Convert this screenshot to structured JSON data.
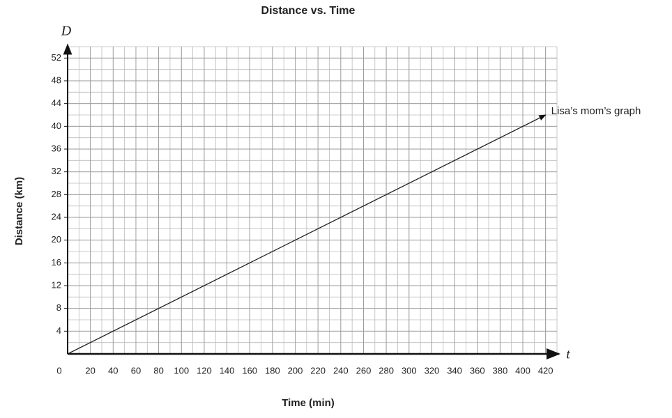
{
  "chart_data": {
    "type": "line",
    "title": "Distance vs. Time",
    "x_label": "Time (min)",
    "y_label": "Distance (km)",
    "x_axis_symbol": "t",
    "y_axis_symbol": "D",
    "annotation": "Lisa’s mom’s graph",
    "x": [
      0,
      420
    ],
    "series": [
      {
        "name": "Lisa’s mom’s graph",
        "color": "#222222",
        "values": [
          0,
          42
        ]
      }
    ],
    "xlim": [
      0,
      430
    ],
    "ylim": [
      0,
      54
    ],
    "xticks": [
      0,
      20,
      40,
      60,
      80,
      100,
      120,
      140,
      160,
      180,
      200,
      220,
      240,
      260,
      280,
      300,
      320,
      340,
      360,
      380,
      400,
      420
    ],
    "yticks": [
      4,
      8,
      12,
      16,
      20,
      24,
      28,
      32,
      36,
      40,
      44,
      48,
      52
    ],
    "grid": true
  }
}
